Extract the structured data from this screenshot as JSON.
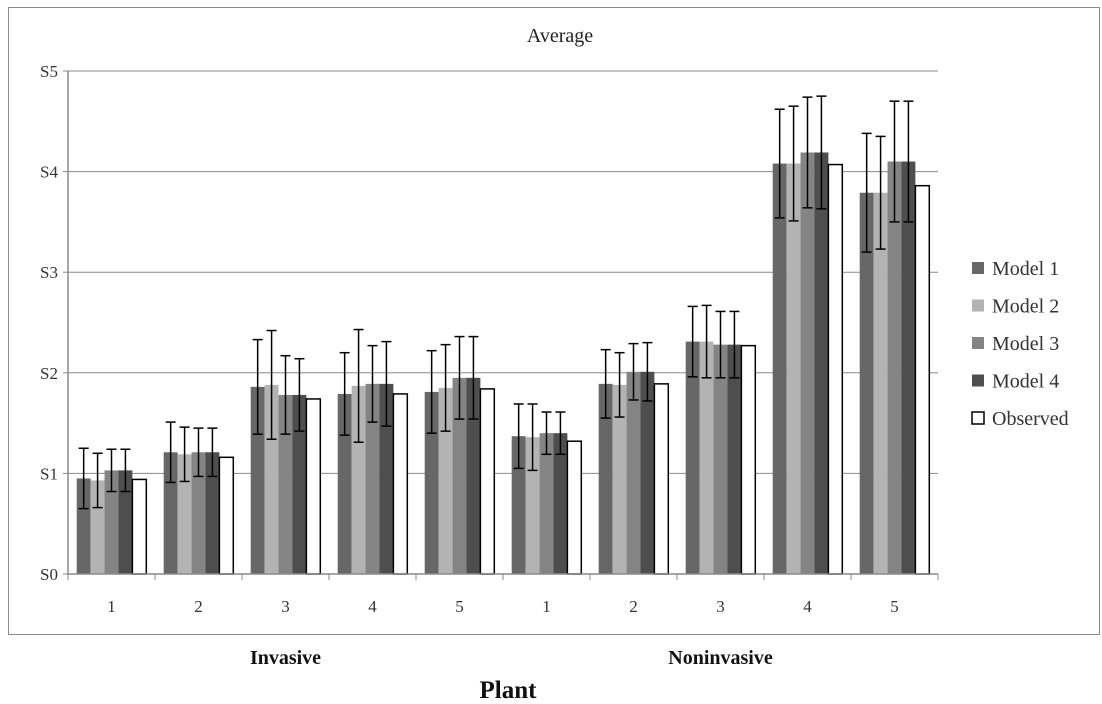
{
  "chart_data": {
    "type": "bar",
    "title": "Average",
    "xlabel": "Plant",
    "ylabel": "",
    "ylim": [
      0,
      5
    ],
    "yticks": [
      "S0",
      "S1",
      "S2",
      "S3",
      "S4",
      "S5"
    ],
    "categories": [
      "1",
      "2",
      "3",
      "4",
      "5",
      "1",
      "2",
      "3",
      "4",
      "5"
    ],
    "groups": [
      {
        "label": "Invasive",
        "categories": [
          "1",
          "2",
          "3",
          "4",
          "5"
        ]
      },
      {
        "label": "Noninvasive",
        "categories": [
          "1",
          "2",
          "3",
          "4",
          "5"
        ]
      }
    ],
    "grid": true,
    "legend_position": "right",
    "series": [
      {
        "name": "Model 1",
        "color": "#676767",
        "values": [
          0.95,
          1.21,
          1.86,
          1.79,
          1.81,
          1.37,
          1.89,
          2.31,
          4.08,
          3.79
        ],
        "err": [
          0.3,
          0.3,
          0.47,
          0.41,
          0.41,
          0.32,
          0.34,
          0.35,
          0.54,
          0.59
        ]
      },
      {
        "name": "Model 2",
        "color": "#b3b3b3",
        "values": [
          0.93,
          1.19,
          1.88,
          1.87,
          1.85,
          1.36,
          1.88,
          2.31,
          4.08,
          3.79
        ],
        "err": [
          0.27,
          0.27,
          0.54,
          0.56,
          0.43,
          0.33,
          0.32,
          0.36,
          0.57,
          0.56
        ]
      },
      {
        "name": "Model 3",
        "color": "#848484",
        "values": [
          1.03,
          1.21,
          1.78,
          1.89,
          1.95,
          1.4,
          2.01,
          2.28,
          4.19,
          4.1
        ],
        "err": [
          0.21,
          0.24,
          0.39,
          0.38,
          0.41,
          0.21,
          0.28,
          0.33,
          0.55,
          0.6
        ]
      },
      {
        "name": "Model 4",
        "color": "#4e4e4e",
        "values": [
          1.03,
          1.21,
          1.78,
          1.89,
          1.95,
          1.4,
          2.01,
          2.28,
          4.19,
          4.1
        ],
        "err": [
          0.21,
          0.24,
          0.36,
          0.42,
          0.41,
          0.21,
          0.29,
          0.33,
          0.56,
          0.6
        ]
      },
      {
        "name": "Observed",
        "color": "#ffffff",
        "values": [
          0.94,
          1.16,
          1.74,
          1.79,
          1.84,
          1.32,
          1.89,
          2.27,
          4.07,
          3.86
        ],
        "err": null
      }
    ]
  }
}
